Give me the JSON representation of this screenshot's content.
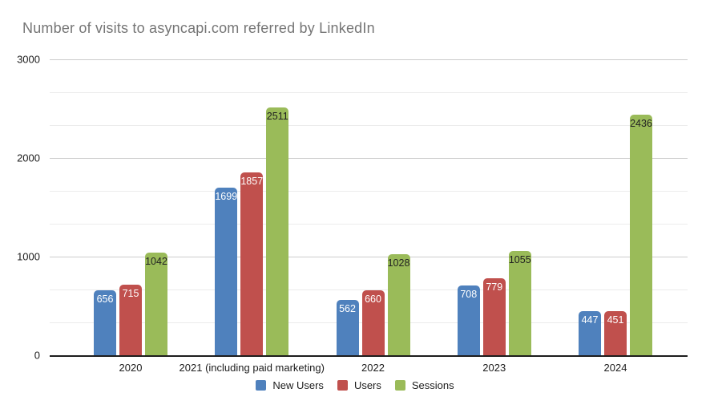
{
  "chart_data": {
    "type": "bar",
    "title": "Number of visits to asyncapi.com referred by LinkedIn",
    "categories": [
      "2020",
      "2021 (including paid marketing)",
      "2022",
      "2023",
      "2024"
    ],
    "series": [
      {
        "name": "New Users",
        "color": "#4f81bd",
        "label_color": "#ffffff",
        "values": [
          656,
          1699,
          562,
          708,
          447
        ]
      },
      {
        "name": "Users",
        "color": "#c0504d",
        "label_color": "#ffffff",
        "values": [
          715,
          1857,
          660,
          779,
          451
        ]
      },
      {
        "name": "Sessions",
        "color": "#9abb59",
        "label_color": "#212121",
        "values": [
          1042,
          2511,
          1028,
          1055,
          2436
        ]
      }
    ],
    "xlabel": "",
    "ylabel": "",
    "ylim": [
      0,
      3000
    ],
    "yticks": [
      0,
      1000,
      2000,
      3000
    ],
    "minor_divisions_per_major": 3,
    "grid": true,
    "legend_position": "bottom",
    "colors": {
      "background": "#ffffff",
      "title_text": "#757575",
      "axis_text": "#1d1d1d",
      "major_gridline": "#cccccc",
      "minor_gridline": "#ececec",
      "baseline": "#1d1d1d"
    }
  }
}
